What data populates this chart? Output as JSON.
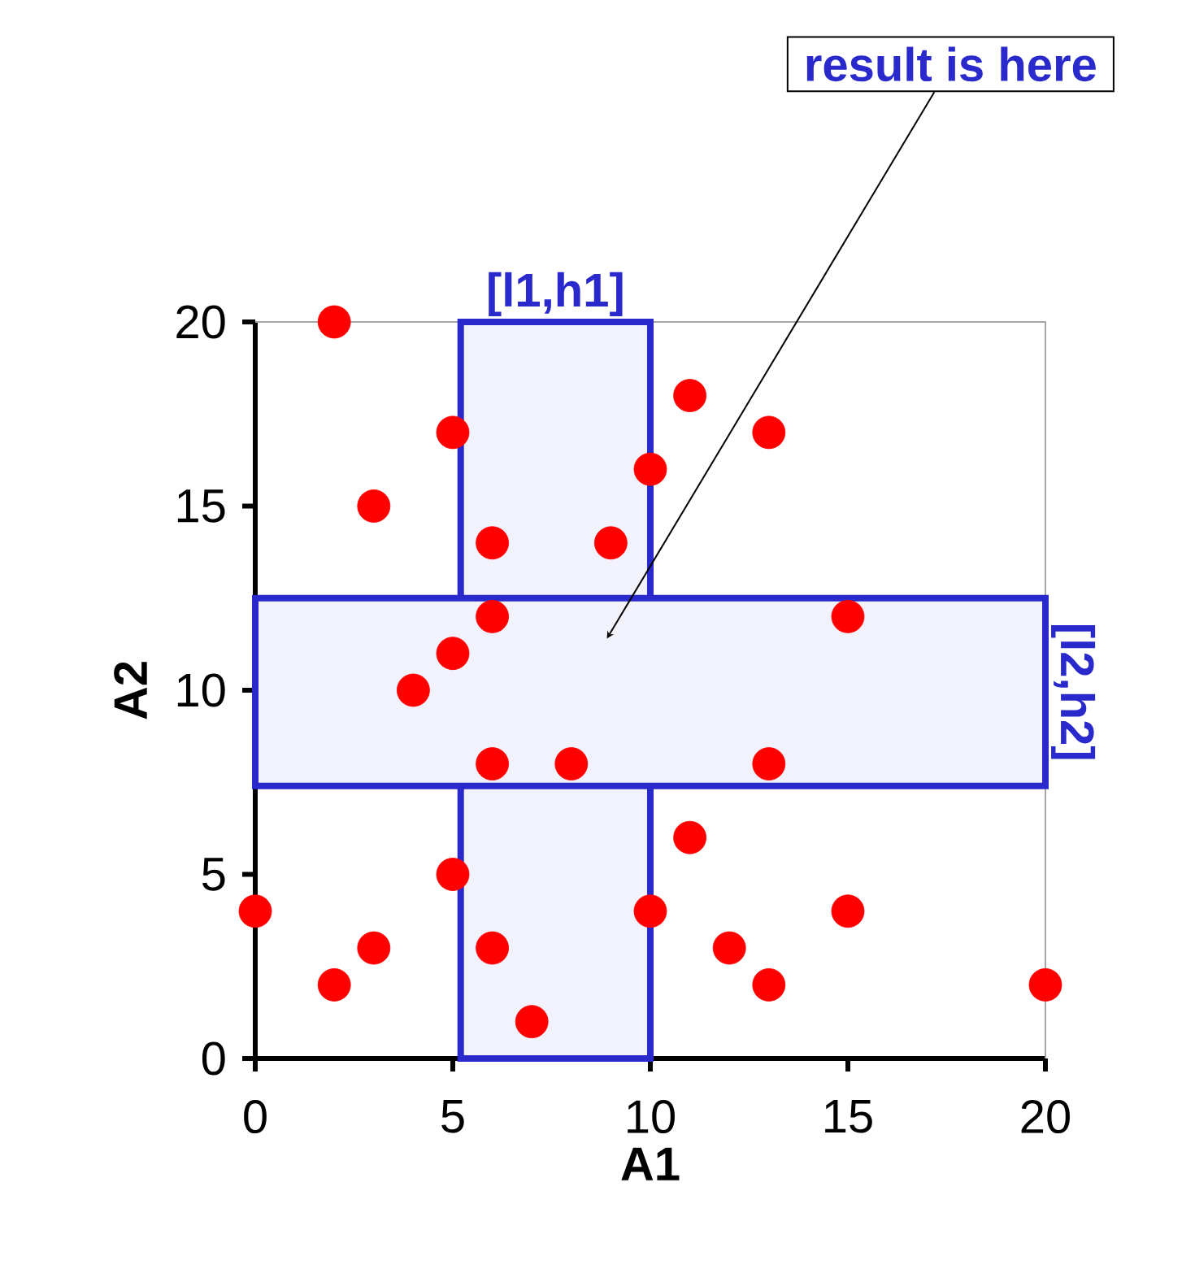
{
  "chart_data": {
    "type": "scatter",
    "xlabel": "A1",
    "ylabel": "A2",
    "x": [
      0,
      2,
      2,
      3,
      3,
      4,
      5,
      5,
      5,
      6,
      6,
      6,
      6,
      7,
      8,
      9,
      10,
      10,
      11,
      11,
      12,
      13,
      13,
      13,
      15,
      15,
      20
    ],
    "values": [
      4,
      20,
      2,
      15,
      3,
      10,
      17,
      11,
      5,
      14,
      12,
      8,
      3,
      1,
      8,
      14,
      16,
      4,
      18,
      6,
      3,
      17,
      8,
      2,
      12,
      4,
      2
    ],
    "color": "#ff0000",
    "marker": "circle",
    "xlim": [
      0,
      20
    ],
    "ylim": [
      0,
      20
    ],
    "xticks": [
      0,
      5,
      10,
      15,
      20
    ],
    "yticks": [
      0,
      5,
      10,
      15,
      20
    ],
    "bands": [
      {
        "axis": "x",
        "from": 5.2,
        "to": 10,
        "label": "[l1,h1]",
        "color": "#2a2acc"
      },
      {
        "axis": "y",
        "from": 7.4,
        "to": 12.5,
        "label": "[l2,h2]",
        "color": "#2a2acc"
      }
    ],
    "annotations": [
      "result is here"
    ]
  }
}
